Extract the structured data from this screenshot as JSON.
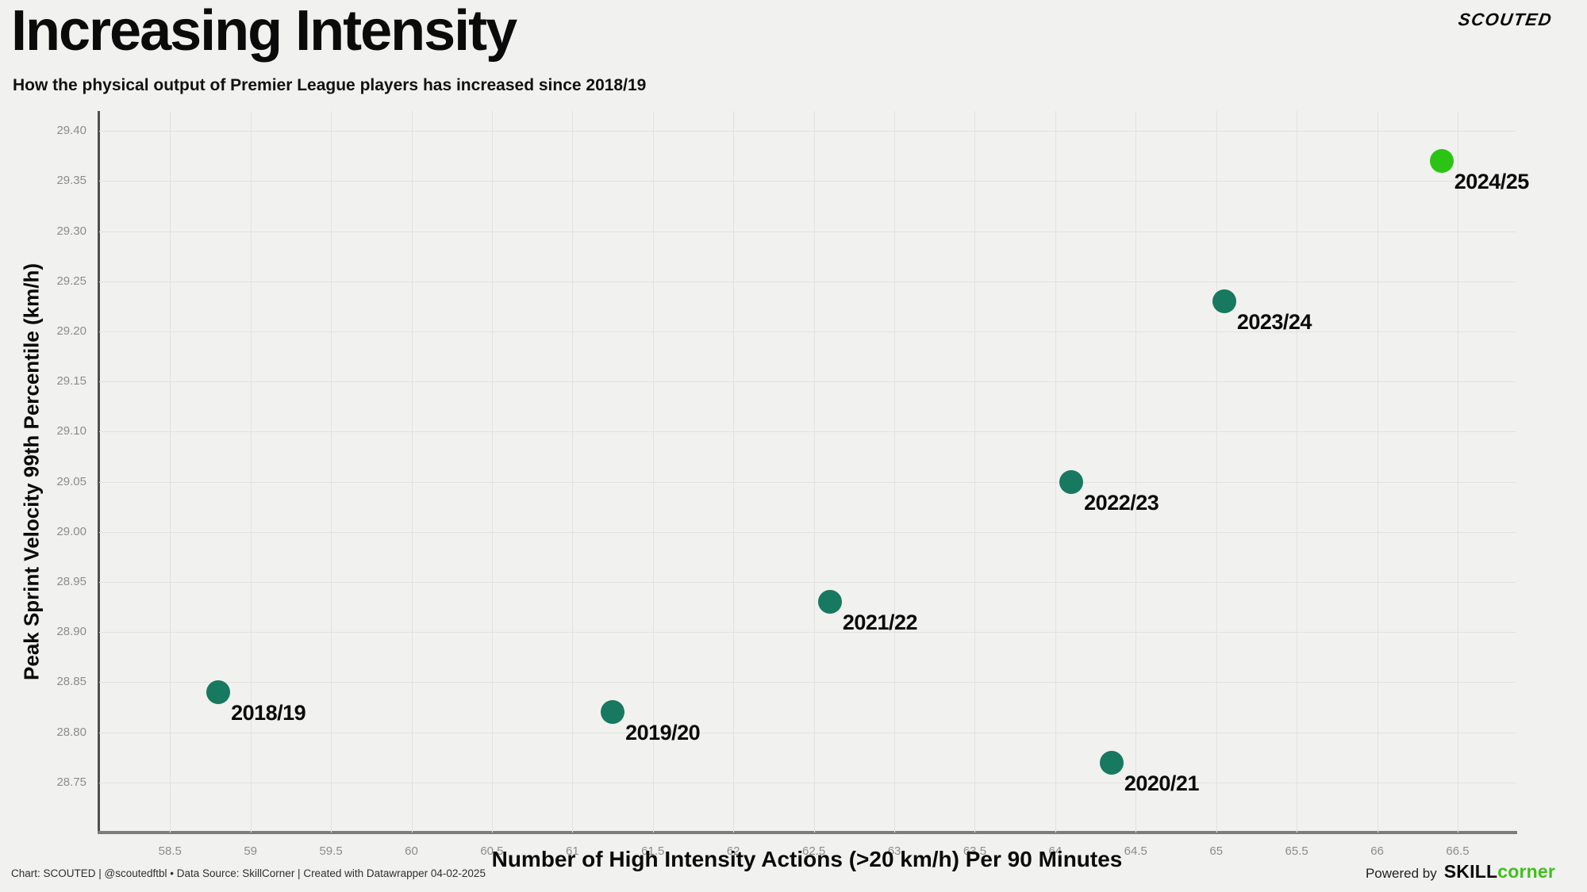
{
  "header": {
    "title": "Increasing Intensity",
    "subtitle": "How the physical output of Premier League players has increased since 2018/19",
    "brand": "SCOUTED"
  },
  "chart_data": {
    "type": "scatter",
    "title": "Increasing Intensity",
    "subtitle": "How the physical output of Premier League players has increased since 2018/19",
    "xlabel": "Number of High Intensity Actions (>20 km/h) Per 90 Minutes",
    "ylabel": "Peak Sprint Velocity 99th Percentile (km/h)",
    "xlim": [
      58.06,
      66.86
    ],
    "ylim": [
      28.7,
      29.42
    ],
    "grid": true,
    "legend": "none",
    "x_ticks": [
      {
        "v": 58.5,
        "label": "58.5"
      },
      {
        "v": 59,
        "label": "59"
      },
      {
        "v": 59.5,
        "label": "59.5"
      },
      {
        "v": 60,
        "label": "60"
      },
      {
        "v": 60.5,
        "label": "60.5"
      },
      {
        "v": 61,
        "label": "61"
      },
      {
        "v": 61.5,
        "label": "61.5"
      },
      {
        "v": 62,
        "label": "62"
      },
      {
        "v": 62.5,
        "label": "62.5"
      },
      {
        "v": 63,
        "label": "63"
      },
      {
        "v": 63.5,
        "label": "63.5"
      },
      {
        "v": 64,
        "label": "64"
      },
      {
        "v": 64.5,
        "label": "64.5"
      },
      {
        "v": 65,
        "label": "65"
      },
      {
        "v": 65.5,
        "label": "65.5"
      },
      {
        "v": 66,
        "label": "66"
      },
      {
        "v": 66.5,
        "label": "66.5"
      }
    ],
    "y_ticks": [
      {
        "v": 28.75,
        "label": "28.75"
      },
      {
        "v": 28.8,
        "label": "28.80"
      },
      {
        "v": 28.85,
        "label": "28.85"
      },
      {
        "v": 28.9,
        "label": "28.90"
      },
      {
        "v": 28.95,
        "label": "28.95"
      },
      {
        "v": 29.0,
        "label": "29.00"
      },
      {
        "v": 29.05,
        "label": "29.05"
      },
      {
        "v": 29.1,
        "label": "29.10"
      },
      {
        "v": 29.15,
        "label": "29.15"
      },
      {
        "v": 29.2,
        "label": "29.20"
      },
      {
        "v": 29.25,
        "label": "29.25"
      },
      {
        "v": 29.3,
        "label": "29.30"
      },
      {
        "v": 29.35,
        "label": "29.35"
      },
      {
        "v": 29.4,
        "label": "29.40"
      }
    ],
    "points": [
      {
        "label": "2018/19",
        "x": 58.8,
        "y": 28.84,
        "color": "#17795f"
      },
      {
        "label": "2019/20",
        "x": 61.25,
        "y": 28.82,
        "color": "#17795f"
      },
      {
        "label": "2020/21",
        "x": 64.35,
        "y": 28.77,
        "color": "#17795f"
      },
      {
        "label": "2021/22",
        "x": 62.6,
        "y": 28.93,
        "color": "#17795f"
      },
      {
        "label": "2022/23",
        "x": 64.1,
        "y": 29.05,
        "color": "#17795f"
      },
      {
        "label": "2023/24",
        "x": 65.05,
        "y": 29.23,
        "color": "#17795f"
      },
      {
        "label": "2024/25",
        "x": 66.4,
        "y": 29.37,
        "color": "#2cc414",
        "highlight": true
      }
    ]
  },
  "footer": {
    "credit": "Chart: SCOUTED | @scoutedftbl • Data Source: SkillCorner | Created with Datawrapper 04-02-2025",
    "powered_by": "Powered by",
    "brand_skill": "SKILL",
    "brand_corner": "corner"
  },
  "colors": {
    "background": "#f1f1ef",
    "point_teal": "#17795f",
    "point_highlight_green": "#2cc414",
    "skillcorner_green": "#3fc01c",
    "grid": "#e2e2df",
    "axis_bottom": "#7d7d7d",
    "axis_left": "#4f4f4f",
    "tick_text": "#8c8c8c"
  }
}
